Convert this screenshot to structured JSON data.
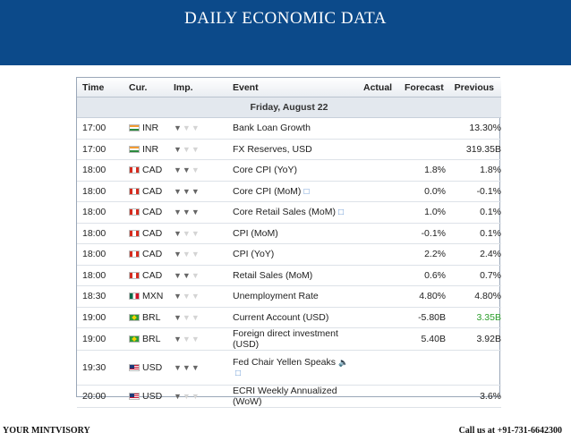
{
  "banner": {
    "title": "DAILY ECONOMIC DATA",
    "color": "#0c4a8a"
  },
  "table": {
    "headers": {
      "time": "Time",
      "cur": "Cur.",
      "imp": "Imp.",
      "event": "Event",
      "actual": "Actual",
      "forecast": "Forecast",
      "previous": "Previous"
    },
    "day": "Friday, August 22",
    "rows": [
      {
        "time": "17:00",
        "flag": "in",
        "currency": "INR",
        "importance": 1,
        "event": "Bank Loan Growth",
        "actual": "",
        "forecast": "",
        "previous": "13.30%"
      },
      {
        "time": "17:00",
        "flag": "in",
        "currency": "INR",
        "importance": 1,
        "event": "FX Reserves, USD",
        "actual": "",
        "forecast": "",
        "previous": "319.35B"
      },
      {
        "time": "18:00",
        "flag": "ca",
        "currency": "CAD",
        "importance": 2,
        "event": "Core CPI (YoY)",
        "actual": "",
        "forecast": "1.8%",
        "previous": "1.8%"
      },
      {
        "time": "18:00",
        "flag": "ca",
        "currency": "CAD",
        "importance": 3,
        "event": "Core CPI (MoM)",
        "comment": true,
        "actual": "",
        "forecast": "0.0%",
        "previous": "-0.1%"
      },
      {
        "time": "18:00",
        "flag": "ca",
        "currency": "CAD",
        "importance": 3,
        "event": "Core Retail Sales (MoM)",
        "comment": true,
        "actual": "",
        "forecast": "1.0%",
        "previous": "0.1%"
      },
      {
        "time": "18:00",
        "flag": "ca",
        "currency": "CAD",
        "importance": 1,
        "event": "CPI (MoM)",
        "actual": "",
        "forecast": "-0.1%",
        "previous": "0.1%"
      },
      {
        "time": "18:00",
        "flag": "ca",
        "currency": "CAD",
        "importance": 1,
        "event": "CPI (YoY)",
        "actual": "",
        "forecast": "2.2%",
        "previous": "2.4%"
      },
      {
        "time": "18:00",
        "flag": "ca",
        "currency": "CAD",
        "importance": 2,
        "event": "Retail Sales (MoM)",
        "actual": "",
        "forecast": "0.6%",
        "previous": "0.7%"
      },
      {
        "time": "18:30",
        "flag": "mx",
        "currency": "MXN",
        "importance": 1,
        "event": "Unemployment Rate",
        "actual": "",
        "forecast": "4.80%",
        "previous": "4.80%"
      },
      {
        "time": "19:00",
        "flag": "br",
        "currency": "BRL",
        "importance": 1,
        "event": "Current Account (USD)",
        "actual": "",
        "forecast": "-5.80B",
        "previous": "3.35B",
        "previous_color": "#2a9d2a"
      },
      {
        "time": "19:00",
        "flag": "br",
        "currency": "BRL",
        "importance": 1,
        "event": "Foreign direct investment (USD)",
        "actual": "",
        "forecast": "5.40B",
        "previous": "3.92B"
      },
      {
        "time": "19:30",
        "flag": "us",
        "currency": "USD",
        "importance": 3,
        "event": "Fed Chair Yellen Speaks",
        "speech": true,
        "comment": true,
        "actual": "",
        "forecast": "",
        "previous": ""
      },
      {
        "time": "20:00",
        "flag": "us",
        "currency": "USD",
        "importance": 1,
        "event": "ECRI Weekly Annualized (WoW)",
        "actual": "",
        "forecast": "",
        "previous": "3.6%"
      }
    ]
  },
  "footer": {
    "left": "YOUR MINTVISORY",
    "right": "Call us at +91-731-6642300"
  }
}
